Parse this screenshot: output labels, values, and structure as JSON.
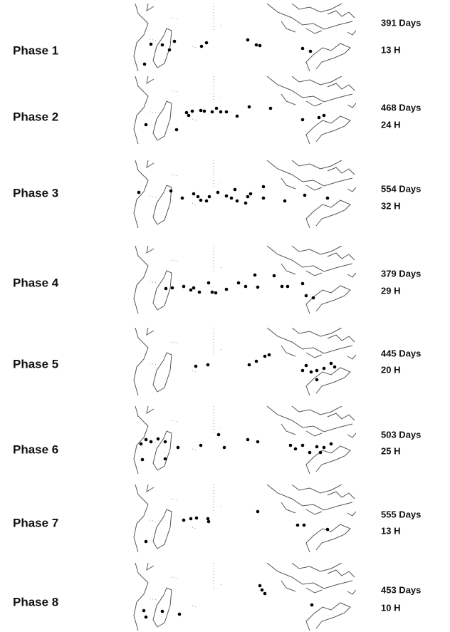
{
  "panels": [
    {
      "label": "Phase 1",
      "days": "391 Days",
      "hours": "13 H"
    },
    {
      "label": "Phase 2",
      "days": "468 Days",
      "hours": "24 H"
    },
    {
      "label": "Phase 3",
      "days": "554 Days",
      "hours": "32 H"
    },
    {
      "label": "Phase 4",
      "days": "379 Days",
      "hours": "29 H"
    },
    {
      "label": "Phase 5",
      "days": "445 Days",
      "hours": "20 H"
    },
    {
      "label": "Phase 6",
      "days": "503 Days",
      "hours": "25 H"
    },
    {
      "label": "Phase 7",
      "days": "555 Days",
      "hours": "13 H"
    },
    {
      "label": "Phase 8",
      "days": "453 Days",
      "hours": "10 H"
    }
  ]
}
